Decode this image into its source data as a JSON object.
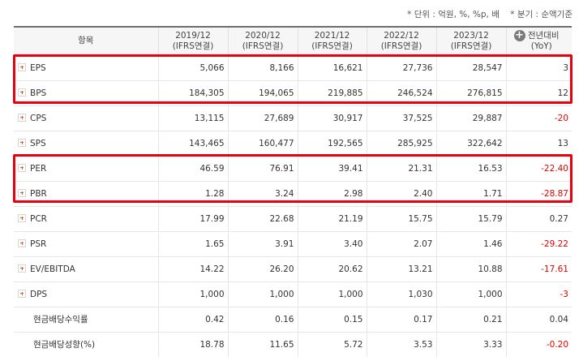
{
  "units": {
    "left": "* 단위 : 억원, %, %p, 배",
    "right": "* 분기 : 순액기준"
  },
  "header": {
    "item": "항목",
    "periods": [
      {
        "year": "2019/12",
        "basis": "(IFRS연결)"
      },
      {
        "year": "2020/12",
        "basis": "(IFRS연결)"
      },
      {
        "year": "2021/12",
        "basis": "(IFRS연결)"
      },
      {
        "year": "2022/12",
        "basis": "(IFRS연결)"
      },
      {
        "year": "2023/12",
        "basis": "(IFRS연결)"
      }
    ],
    "expand_icon": "plus-circle-icon",
    "yoy": "전년대비",
    "yoy_sub": "(YoY)"
  },
  "rows": [
    {
      "label": "EPS",
      "values": [
        "5,066",
        "8,166",
        "16,621",
        "27,736",
        "28,547"
      ],
      "yoy": "3"
    },
    {
      "label": "BPS",
      "values": [
        "184,305",
        "194,065",
        "219,885",
        "246,524",
        "276,815"
      ],
      "yoy": "12"
    },
    {
      "label": "CPS",
      "values": [
        "13,115",
        "27,689",
        "30,917",
        "37,525",
        "29,887"
      ],
      "yoy": "-20"
    },
    {
      "label": "SPS",
      "values": [
        "143,465",
        "160,477",
        "192,565",
        "285,925",
        "322,642"
      ],
      "yoy": "13"
    },
    {
      "label": "PER",
      "values": [
        "46.59",
        "76.91",
        "39.41",
        "21.31",
        "16.53"
      ],
      "yoy": "-22.40"
    },
    {
      "label": "PBR",
      "values": [
        "1.28",
        "3.24",
        "2.98",
        "2.40",
        "1.71"
      ],
      "yoy": "-28.87"
    },
    {
      "label": "PCR",
      "values": [
        "17.99",
        "22.68",
        "21.19",
        "15.75",
        "15.79"
      ],
      "yoy": "0.27"
    },
    {
      "label": "PSR",
      "values": [
        "1.65",
        "3.91",
        "3.40",
        "2.07",
        "1.46"
      ],
      "yoy": "-29.22"
    },
    {
      "label": "EV/EBITDA",
      "values": [
        "14.22",
        "26.20",
        "20.62",
        "13.21",
        "10.88"
      ],
      "yoy": "-17.61"
    },
    {
      "label": "DPS",
      "values": [
        "1,000",
        "1,000",
        "1,000",
        "1,030",
        "1,000"
      ],
      "yoy": "-3"
    },
    {
      "label": "현금배당수익률",
      "values": [
        "0.42",
        "0.16",
        "0.15",
        "0.17",
        "0.21"
      ],
      "yoy": "0.04"
    },
    {
      "label": "현금배당성향(%)",
      "values": [
        "18.78",
        "11.65",
        "5.72",
        "3.53",
        "3.33"
      ],
      "yoy": "-0.20"
    }
  ],
  "colors": {
    "highlight": "#e8000d",
    "negative": "#e00000",
    "plus_icon": "#e85a1f"
  }
}
